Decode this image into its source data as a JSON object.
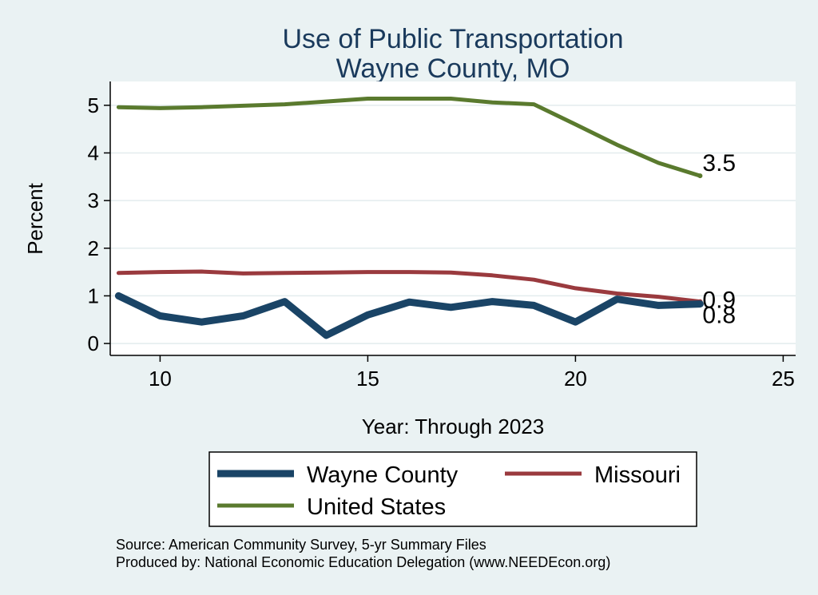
{
  "chart_data": {
    "type": "line",
    "title": [
      "Use of Public Transportation",
      "Wayne County, MO"
    ],
    "xlabel": "Year: Through 2023",
    "ylabel": "Percent",
    "xlim": [
      8.8,
      25.3
    ],
    "ylim": [
      -0.25,
      5.5
    ],
    "xticks": [
      10,
      15,
      20,
      25
    ],
    "yticks": [
      0,
      1,
      2,
      3,
      4,
      5
    ],
    "grid": "horizontal",
    "series": [
      {
        "name": "Wayne County",
        "color": "#1a4466",
        "width": 9,
        "x": [
          9,
          10,
          11,
          12,
          13,
          14,
          15,
          16,
          17,
          18,
          19,
          20,
          21,
          22,
          23
        ],
        "values": [
          1.0,
          0.58,
          0.45,
          0.58,
          0.88,
          0.17,
          0.6,
          0.87,
          0.76,
          0.88,
          0.8,
          0.45,
          0.93,
          0.8,
          0.83
        ],
        "end_label": "0.8"
      },
      {
        "name": "Missouri",
        "color": "#9a3a3e",
        "width": 5,
        "x": [
          9,
          10,
          11,
          12,
          13,
          14,
          15,
          16,
          17,
          18,
          19,
          20,
          21,
          22,
          23
        ],
        "values": [
          1.48,
          1.5,
          1.51,
          1.47,
          1.48,
          1.49,
          1.5,
          1.5,
          1.49,
          1.43,
          1.34,
          1.16,
          1.05,
          0.98,
          0.88
        ],
        "end_label": "0.9"
      },
      {
        "name": "United States",
        "color": "#5a7a2e",
        "width": 5,
        "x": [
          9,
          10,
          11,
          12,
          13,
          14,
          15,
          16,
          17,
          18,
          19,
          20,
          21,
          22,
          23
        ],
        "values": [
          4.96,
          4.94,
          4.96,
          4.99,
          5.02,
          5.08,
          5.14,
          5.14,
          5.14,
          5.06,
          5.02,
          4.6,
          4.17,
          3.79,
          3.52
        ],
        "end_label": "3.5"
      }
    ],
    "legend": {
      "placement": "bottom",
      "entries": [
        "Wayne County",
        "Missouri",
        "United States"
      ]
    },
    "source": [
      "Source: American Community Survey, 5-yr Summary Files",
      "Produced by: National Economic Education Delegation (www.NEEDEcon.org)"
    ]
  }
}
